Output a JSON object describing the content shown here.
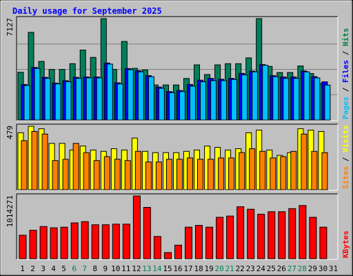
{
  "chart_data": {
    "type": "bar",
    "title": "Daily usage for September 2025",
    "categories": [
      "1",
      "2",
      "3",
      "4",
      "5",
      "6",
      "7",
      "8",
      "9",
      "10",
      "11",
      "12",
      "13",
      "14",
      "15",
      "16",
      "17",
      "18",
      "19",
      "20",
      "21",
      "22",
      "23",
      "24",
      "25",
      "26",
      "27",
      "28",
      "29",
      "30",
      "31"
    ],
    "weekend_categories": [
      "6",
      "7",
      "13",
      "14",
      "20",
      "21",
      "27",
      "28"
    ],
    "panels": [
      {
        "id": "hits-files-pages",
        "ymax_label": "7127",
        "ymax": 7127,
        "label_parts": [
          {
            "text": "Pages",
            "color": "#00c0ff"
          },
          {
            "text": " / ",
            "color": "#000000"
          },
          {
            "text": "Files",
            "color": "#0000ff"
          },
          {
            "text": " / ",
            "color": "#000000"
          },
          {
            "text": "Hits",
            "color": "#008040"
          }
        ],
        "series": [
          {
            "name": "Hits",
            "color": "#00805c",
            "values": [
              3360,
              6160,
              4120,
              3560,
              3560,
              3960,
              4920,
              4400,
              7127,
              3560,
              5520,
              3630,
              3520,
              2470,
              2470,
              2470,
              2920,
              3880,
              3200,
              3880,
              3960,
              3960,
              4370,
              7127,
              3770,
              3340,
              3340,
              3800,
              3270,
              2570,
              0
            ]
          },
          {
            "name": "Files",
            "color": "#0000ff",
            "values": [
              2500,
              3700,
              3000,
              2600,
              2770,
              3000,
              3030,
              3030,
              4010,
              2620,
              3620,
              3470,
              3120,
              2320,
              2000,
              2080,
              2500,
              2800,
              2930,
              2870,
              2930,
              3280,
              3440,
              3900,
              3120,
              3030,
              3030,
              3450,
              3050,
              2690,
              0
            ]
          },
          {
            "name": "Pages",
            "color": "#00c0ff",
            "values": [
              2430,
              3620,
              2930,
              2540,
              2690,
              2930,
              2960,
              2960,
              3930,
              2540,
              3540,
              3390,
              3050,
              2230,
              1920,
              2000,
              2380,
              2690,
              2770,
              2770,
              2850,
              3170,
              3390,
              3850,
              3050,
              2930,
              2930,
              3390,
              2960,
              2460,
              0
            ]
          }
        ]
      },
      {
        "id": "visits-sites",
        "ymax_label": "479",
        "ymax": 479,
        "label_parts": [
          {
            "text": "Sites",
            "color": "#ff8000"
          },
          {
            "text": " / ",
            "color": "#000000"
          },
          {
            "text": "Visits",
            "color": "#ffff00"
          }
        ],
        "series": [
          {
            "name": "Visits",
            "color": "#ffff00",
            "values": [
              430,
              479,
              460,
              350,
              350,
              300,
              330,
              300,
              290,
              310,
              300,
              390,
              290,
              280,
              280,
              280,
              290,
              300,
              330,
              320,
              300,
              310,
              430,
              450,
              300,
              260,
              280,
              460,
              450,
              440,
              0
            ]
          },
          {
            "name": "Sites",
            "color": "#ff8000",
            "values": [
              370,
              440,
              420,
              220,
              230,
              350,
              280,
              220,
              250,
              230,
              220,
              290,
              210,
              210,
              230,
              230,
              240,
              230,
              230,
              240,
              240,
              280,
              310,
              290,
              240,
              250,
              290,
              420,
              290,
              280,
              0
            ]
          }
        ]
      },
      {
        "id": "kbytes",
        "ymax_label": "1014271",
        "ymax": 1014271,
        "label_parts": [
          {
            "text": "KBytes",
            "color": "#ff0000"
          }
        ],
        "series": [
          {
            "name": "KBytes",
            "color": "#ff0000",
            "values": [
              380000,
              460000,
              520000,
              500000,
              510000,
              580000,
              600000,
              550000,
              550000,
              560000,
              560000,
              1014271,
              830000,
              360000,
              100000,
              220000,
              510000,
              540000,
              510000,
              670000,
              690000,
              840000,
              800000,
              720000,
              760000,
              760000,
              810000,
              860000,
              670000,
              510000,
              0
            ]
          }
        ]
      }
    ],
    "colors": {
      "background": "#c0c0c0",
      "title": "#0000ff",
      "weekend_tick": "#00805c",
      "weekday_tick": "#000000",
      "grid": "#808080"
    }
  }
}
